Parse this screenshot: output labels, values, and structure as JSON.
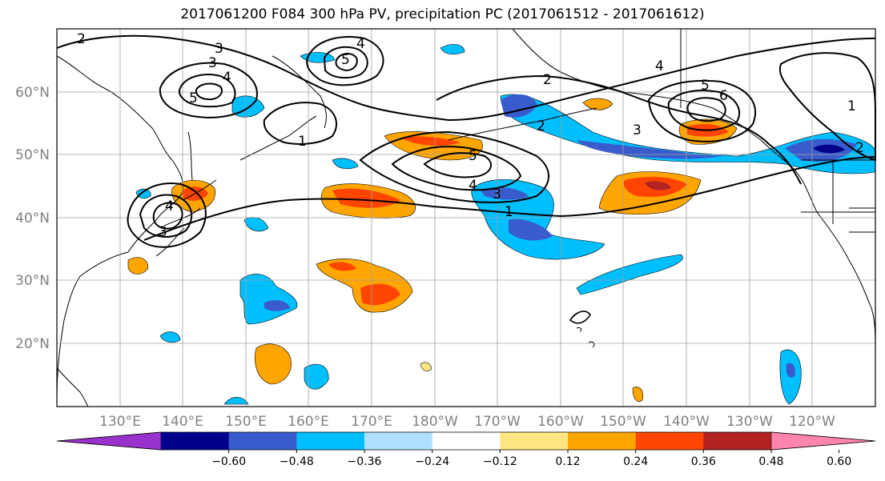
{
  "title": "2017061200 F084 300 hPa PV, precipitation PC (2017061512 - 2017061612)",
  "lat_ticks": [
    "60°N",
    "50°N",
    "40°N",
    "30°N",
    "20°N"
  ],
  "lon_ticks": [
    "130°E",
    "140°E",
    "150°E",
    "160°E",
    "170°E",
    "180°W",
    "170°W",
    "160°W",
    "150°W",
    "140°W",
    "130°W",
    "120°W"
  ],
  "colorbar": {
    "colors": [
      "#9932cc",
      "#00008b",
      "#3a5bcc",
      "#00bfff",
      "#b0e0ff",
      "#ffffff",
      "#ffe680",
      "#ffa500",
      "#ff4500",
      "#b22222",
      "#ff85b0"
    ],
    "labels": [
      "−0.60",
      "−0.48",
      "−0.36",
      "−0.24",
      "−0.12",
      "0.12",
      "0.24",
      "0.36",
      "0.48",
      "0.60"
    ]
  },
  "pv_contour_labels": [
    "1",
    "2",
    "3",
    "4",
    "5",
    "6"
  ],
  "map_extent": {
    "lon_min": 120,
    "lon_max": 250,
    "lat_min": 10,
    "lat_max": 70
  },
  "palette": {
    "land_line": "#000000",
    "grid": "#a0a0a0",
    "contour": "#000000"
  }
}
